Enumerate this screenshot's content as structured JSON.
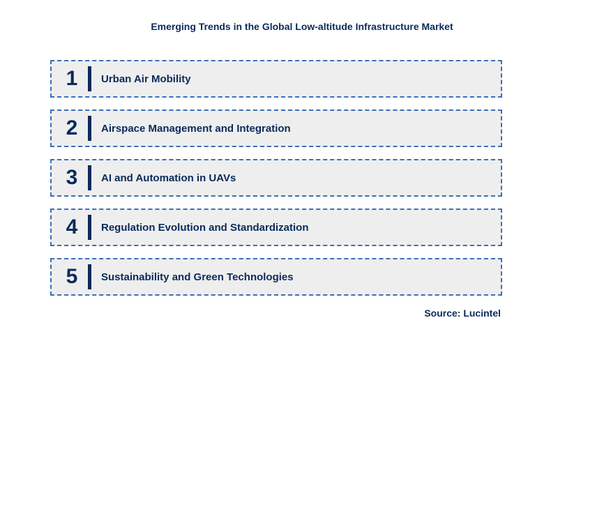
{
  "title": "Emerging Trends in the Global Low-altitude Infrastructure Market",
  "title_fontsize": 14,
  "title_color": "#0a2a5c",
  "items": [
    {
      "number": "1",
      "label": "Urban Air Mobility"
    },
    {
      "number": "2",
      "label": "Airspace Management and Integration"
    },
    {
      "number": "3",
      "label": "AI and Automation in UAVs"
    },
    {
      "number": "4",
      "label": "Regulation Evolution and Standardization"
    },
    {
      "number": "5",
      "label": "Sustainability and Green Technologies"
    }
  ],
  "item_number_fontsize": 30,
  "item_number_color": "#0a2a5c",
  "item_label_fontsize": 15,
  "item_label_color": "#0a2a5c",
  "item_bg_color": "#eeeeee",
  "item_border_color": "#3a6fb8",
  "divider_color": "#0a2a5c",
  "source": "Source: Lucintel",
  "source_fontsize": 14,
  "source_color": "#0a2a5c",
  "background_color": "#ffffff"
}
